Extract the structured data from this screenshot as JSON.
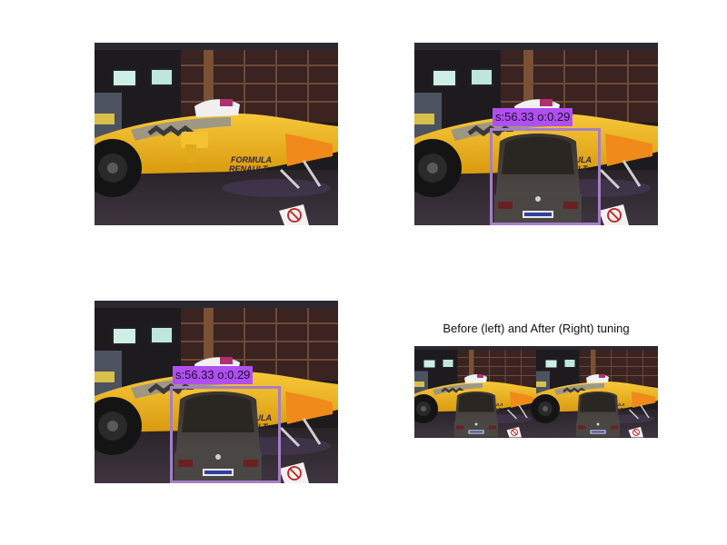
{
  "figure": {
    "title": "Before (left) and After (Right) tuning"
  },
  "detection": {
    "label": "s:56.33 o:0.29",
    "label_color": "#b04ff0",
    "box_color": "#a57fc6"
  },
  "scene": {
    "car_livery": [
      "FORMULA",
      "RENAULT"
    ],
    "livery_color": "#f2b81c"
  }
}
